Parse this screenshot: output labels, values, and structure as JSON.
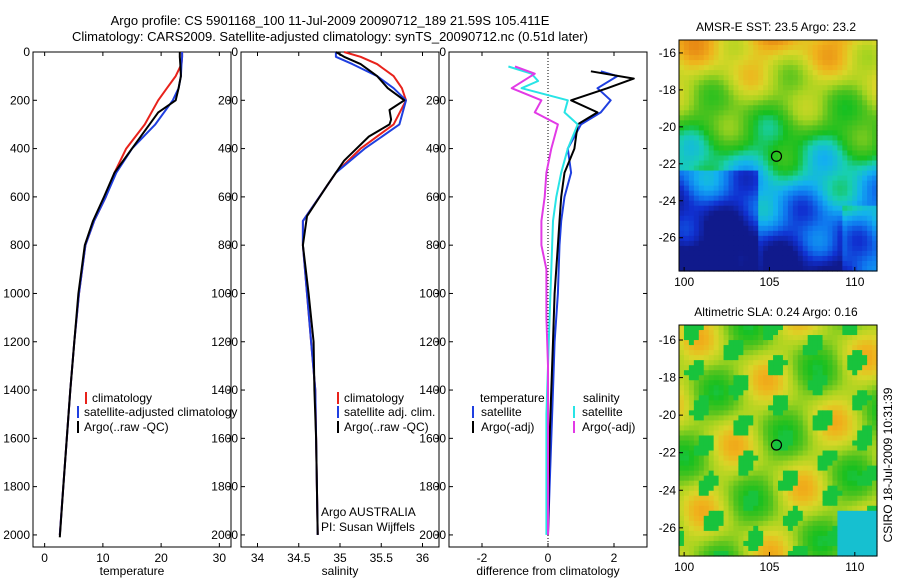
{
  "header": {
    "title_line1": "Argo profile: CS 5901168_100 11-Jul-2009 20090712_189 21.59S 105.411E",
    "title_line2": "Climatology: CARS2009. Satellite-adjusted climatology: synTS_20090712.nc (0.51d later)"
  },
  "footer": {
    "agency": "Argo AUSTRALIA",
    "pi": "PI: Susan Wijffels",
    "stamp": "CSIRO 18-Jul-2009 10:31:39"
  },
  "colors": {
    "climatology": "#e8221b",
    "satellite": "#1f3fe0",
    "argo": "#000000",
    "salinity_satellite": "#28e4e6",
    "salinity_argo": "#e23ae6"
  },
  "chart_data": [
    {
      "type": "line",
      "xlabel": "temperature",
      "ylabel": "",
      "xlim": [
        -2,
        32
      ],
      "ylim": [
        2050,
        0
      ],
      "x_ticks": [
        0,
        10,
        20,
        30
      ],
      "y_ticks": [
        0,
        200,
        400,
        600,
        800,
        1000,
        1200,
        1400,
        1600,
        1800,
        2000
      ],
      "legend": [
        "climatology",
        "satellite-adjusted climatology",
        "Argo(..raw -QC)"
      ],
      "series": [
        {
          "name": "climatology",
          "color": "#e8221b",
          "points": [
            [
              23.6,
              0
            ],
            [
              23.6,
              20
            ],
            [
              23.5,
              50
            ],
            [
              22.5,
              100
            ],
            [
              21.0,
              150
            ],
            [
              19.5,
              200
            ],
            [
              17.2,
              300
            ],
            [
              14.0,
              400
            ],
            [
              12.0,
              500
            ],
            [
              10.5,
              600
            ],
            [
              8.5,
              700
            ],
            [
              7.0,
              800
            ],
            [
              5.9,
              1000
            ],
            [
              5.1,
              1200
            ],
            [
              4.4,
              1400
            ],
            [
              3.8,
              1600
            ],
            [
              3.2,
              1800
            ],
            [
              2.6,
              2000
            ]
          ]
        },
        {
          "name": "satellite-adjusted climatology",
          "color": "#1f3fe0",
          "points": [
            [
              23.6,
              0
            ],
            [
              23.6,
              20
            ],
            [
              23.5,
              50
            ],
            [
              23.4,
              100
            ],
            [
              23.0,
              150
            ],
            [
              22.0,
              200
            ],
            [
              19.0,
              300
            ],
            [
              15.0,
              400
            ],
            [
              12.3,
              500
            ],
            [
              10.5,
              600
            ],
            [
              8.5,
              700
            ],
            [
              7.0,
              800
            ],
            [
              5.9,
              1000
            ],
            [
              5.1,
              1200
            ],
            [
              4.4,
              1400
            ],
            [
              3.8,
              1600
            ],
            [
              3.2,
              1800
            ],
            [
              2.6,
              2000
            ]
          ]
        },
        {
          "name": "Argo(..raw -QC)",
          "color": "#000000",
          "points": [
            [
              23.2,
              0
            ],
            [
              23.2,
              20
            ],
            [
              23.3,
              50
            ],
            [
              23.4,
              100
            ],
            [
              23.0,
              150
            ],
            [
              22.5,
              200
            ],
            [
              19.5,
              250
            ],
            [
              18.0,
              300
            ],
            [
              15.0,
              400
            ],
            [
              12.0,
              500
            ],
            [
              10.2,
              600
            ],
            [
              8.3,
              700
            ],
            [
              6.9,
              800
            ],
            [
              5.8,
              1000
            ],
            [
              5.1,
              1200
            ],
            [
              4.4,
              1400
            ],
            [
              3.8,
              1600
            ],
            [
              3.2,
              1800
            ],
            [
              2.6,
              2010
            ]
          ]
        }
      ]
    },
    {
      "type": "line",
      "xlabel": "salinity",
      "ylabel": "",
      "xlim": [
        33.8,
        36.2
      ],
      "ylim": [
        2050,
        0
      ],
      "x_ticks": [
        34,
        34.5,
        35,
        35.5,
        36
      ],
      "y_ticks": [
        0,
        200,
        400,
        600,
        800,
        1000,
        1200,
        1400,
        1600,
        1800,
        2000
      ],
      "legend": [
        "climatology",
        "satellite adj. clim.",
        "Argo(..raw -QC)"
      ],
      "series": [
        {
          "name": "climatology",
          "color": "#e8221b",
          "points": [
            [
              35.05,
              0
            ],
            [
              35.25,
              20
            ],
            [
              35.45,
              50
            ],
            [
              35.65,
              100
            ],
            [
              35.75,
              150
            ],
            [
              35.8,
              200
            ],
            [
              35.65,
              300
            ],
            [
              35.25,
              400
            ],
            [
              34.95,
              500
            ],
            [
              34.75,
              600
            ],
            [
              34.55,
              700
            ],
            [
              34.55,
              800
            ],
            [
              34.6,
              1000
            ],
            [
              34.65,
              1200
            ],
            [
              34.7,
              1400
            ],
            [
              34.71,
              1600
            ],
            [
              34.72,
              1800
            ],
            [
              34.73,
              2000
            ]
          ]
        },
        {
          "name": "satellite adj. clim.",
          "color": "#1f3fe0",
          "points": [
            [
              34.95,
              0
            ],
            [
              34.95,
              20
            ],
            [
              35.15,
              50
            ],
            [
              35.45,
              100
            ],
            [
              35.65,
              150
            ],
            [
              35.8,
              200
            ],
            [
              35.72,
              300
            ],
            [
              35.3,
              400
            ],
            [
              34.95,
              500
            ],
            [
              34.75,
              600
            ],
            [
              34.55,
              700
            ],
            [
              34.55,
              800
            ],
            [
              34.6,
              1000
            ],
            [
              34.65,
              1200
            ],
            [
              34.7,
              1400
            ],
            [
              34.71,
              1600
            ],
            [
              34.72,
              1800
            ],
            [
              34.73,
              2000
            ]
          ]
        },
        {
          "name": "Argo(..raw -QC)",
          "color": "#000000",
          "points": [
            [
              34.95,
              0
            ],
            [
              35.05,
              20
            ],
            [
              35.25,
              50
            ],
            [
              35.45,
              100
            ],
            [
              35.58,
              150
            ],
            [
              35.78,
              200
            ],
            [
              35.6,
              240
            ],
            [
              35.62,
              280
            ],
            [
              35.6,
              300
            ],
            [
              35.35,
              350
            ],
            [
              35.05,
              450
            ],
            [
              34.85,
              550
            ],
            [
              34.6,
              680
            ],
            [
              34.55,
              800
            ],
            [
              34.62,
              1000
            ],
            [
              34.68,
              1200
            ],
            [
              34.69,
              1400
            ],
            [
              34.71,
              1600
            ],
            [
              34.72,
              1800
            ],
            [
              34.73,
              2000
            ]
          ]
        }
      ]
    },
    {
      "type": "line",
      "xlabel": "difference from climatology",
      "ylabel": "",
      "xlim": [
        -3,
        3
      ],
      "ylim": [
        2050,
        0
      ],
      "x_ticks": [
        -2,
        0,
        2
      ],
      "y_ticks": [
        0,
        200,
        400,
        600,
        800,
        1000,
        1200,
        1400,
        1600,
        1800,
        2000
      ],
      "legend_temperature_title": "temperature",
      "legend_temperature": [
        "satellite",
        "Argo(-adj)"
      ],
      "legend_salinity_title": "salinity",
      "legend_salinity": [
        "satellite",
        "Argo(-adj)"
      ],
      "series": [
        {
          "name": "temperature satellite",
          "color": "#1f3fe0",
          "points": [
            [
              1.6,
              80
            ],
            [
              2.1,
              100
            ],
            [
              1.5,
              150
            ],
            [
              1.9,
              200
            ],
            [
              1.6,
              250
            ],
            [
              1.0,
              300
            ],
            [
              0.6,
              400
            ],
            [
              0.7,
              500
            ],
            [
              0.5,
              600
            ],
            [
              0.4,
              700
            ],
            [
              0.35,
              800
            ],
            [
              0.3,
              1000
            ],
            [
              0.2,
              1200
            ],
            [
              0.15,
              1400
            ],
            [
              0.1,
              1600
            ],
            [
              0.05,
              1800
            ],
            [
              0.0,
              2000
            ]
          ]
        },
        {
          "name": "temperature Argo(-adj)",
          "color": "#000000",
          "points": [
            [
              1.3,
              80
            ],
            [
              2.6,
              110
            ],
            [
              1.8,
              150
            ],
            [
              0.7,
              200
            ],
            [
              1.5,
              250
            ],
            [
              0.9,
              300
            ],
            [
              0.8,
              400
            ],
            [
              0.5,
              500
            ],
            [
              0.4,
              600
            ],
            [
              0.35,
              700
            ],
            [
              0.3,
              800
            ],
            [
              0.2,
              1000
            ],
            [
              0.15,
              1200
            ],
            [
              0.1,
              1400
            ],
            [
              0.05,
              1600
            ],
            [
              0.02,
              1800
            ],
            [
              0.0,
              2000
            ]
          ]
        },
        {
          "name": "salinity satellite",
          "color": "#28e4e6",
          "points": [
            [
              -1.2,
              60
            ],
            [
              -0.5,
              90
            ],
            [
              -0.3,
              120
            ],
            [
              -0.8,
              150
            ],
            [
              0.6,
              200
            ],
            [
              0.5,
              250
            ],
            [
              0.9,
              300
            ],
            [
              0.6,
              400
            ],
            [
              0.4,
              500
            ],
            [
              0.25,
              600
            ],
            [
              0.15,
              700
            ],
            [
              0.1,
              900
            ],
            [
              0.05,
              1100
            ],
            [
              0.0,
              1300
            ],
            [
              -0.05,
              1500
            ],
            [
              -0.05,
              1700
            ],
            [
              -0.05,
              2000
            ]
          ]
        },
        {
          "name": "salinity Argo(-adj)",
          "color": "#e23ae6",
          "points": [
            [
              -1.0,
              60
            ],
            [
              -0.4,
              90
            ],
            [
              -1.1,
              150
            ],
            [
              -0.2,
              200
            ],
            [
              -0.4,
              250
            ],
            [
              0.3,
              300
            ],
            [
              0.1,
              400
            ],
            [
              -0.05,
              500
            ],
            [
              -0.1,
              600
            ],
            [
              -0.2,
              700
            ],
            [
              -0.2,
              800
            ],
            [
              -0.05,
              900
            ],
            [
              -0.05,
              1100
            ],
            [
              0.0,
              1300
            ],
            [
              0.0,
              2000
            ]
          ]
        }
      ]
    },
    {
      "type": "heatmap",
      "title": "AMSR-E SST: 23.5 Argo: 23.2",
      "xlim": [
        99.7,
        111.3
      ],
      "ylim": [
        -27.8,
        -15.3
      ],
      "x_ticks": [
        100,
        105,
        110
      ],
      "y_ticks": [
        -16,
        -18,
        -20,
        -22,
        -24,
        -26
      ],
      "marker": [
        105.411,
        -21.59
      ]
    },
    {
      "type": "heatmap",
      "title": "Altimetric SLA: 0.24 Argo: 0.16",
      "xlim": [
        99.7,
        111.3
      ],
      "ylim": [
        -27.5,
        -15.2
      ],
      "x_ticks": [
        100,
        105,
        110
      ],
      "y_ticks": [
        -16,
        -18,
        -20,
        -22,
        -24,
        -26
      ],
      "marker": [
        105.411,
        -21.59
      ]
    }
  ]
}
